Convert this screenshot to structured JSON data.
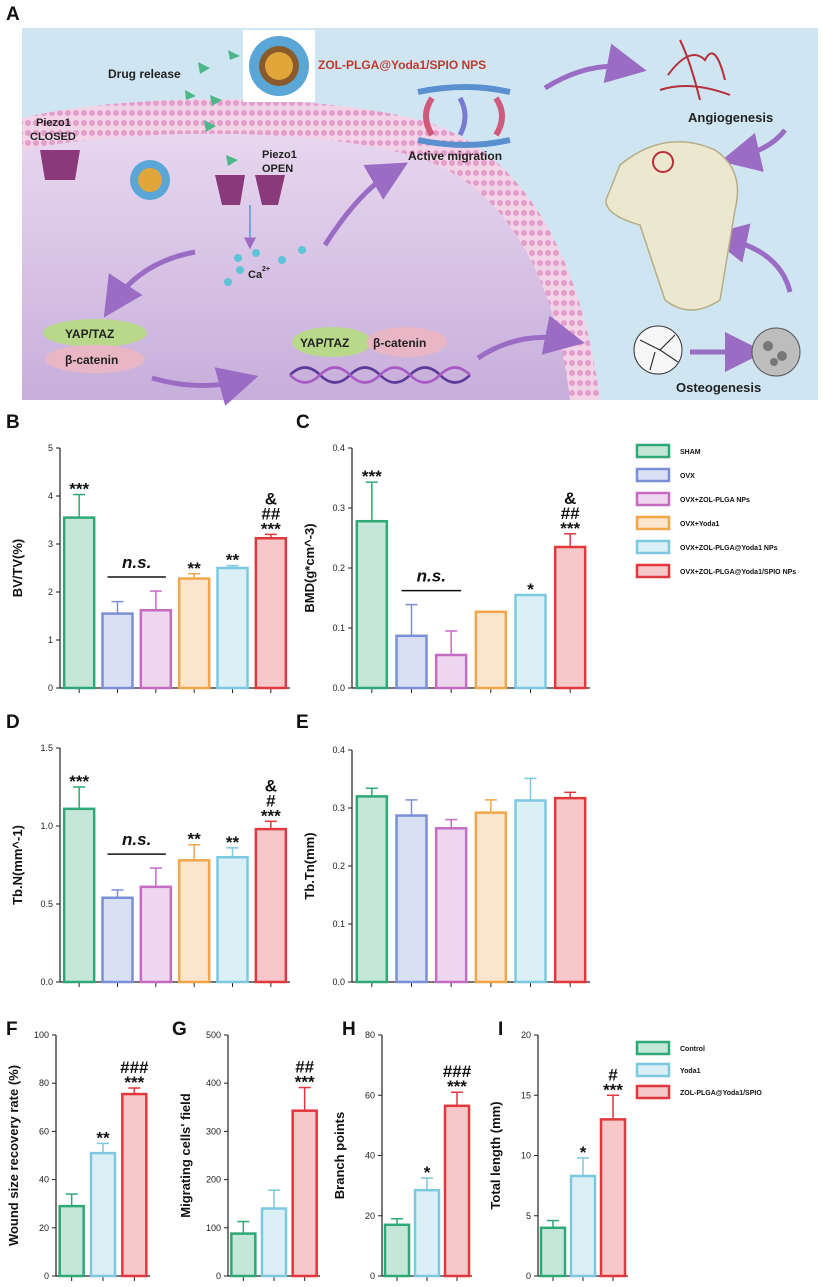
{
  "diagram": {
    "letter": "A",
    "drug_release": "Drug release",
    "np_title": "ZOL-PLGA@Yoda1/SPIO NPS",
    "piezo_closed_1": "Piezo1",
    "piezo_closed_2": "CLOSED",
    "piezo_open_1": "Piezo1",
    "piezo_open_2": "OPEN",
    "active_migration": "Active migration",
    "angiogenesis": "Angiogenesis",
    "osteogenesis": "Osteogenesis",
    "calcium": "Ca",
    "calcium_sup": "2+",
    "yap1": "YAP/TAZ",
    "bcat1": "β-catenin",
    "yap2": "YAP/TAZ",
    "bcat2": "β-catenin",
    "colors": {
      "background": "#cfe6f2",
      "membrane": "#e8b5d6",
      "cell": "#d6c2e4",
      "arrow": "#9a6cc4",
      "title_red": "#c0392b"
    }
  },
  "legend_top": [
    {
      "label": "SHAM",
      "color": "#2ea876"
    },
    {
      "label": "OVX",
      "color": "#7b8fd6"
    },
    {
      "label": "OVX+ZOL-PLGA NPs",
      "color": "#c46cc4"
    },
    {
      "label": "OVX+Yoda1",
      "color": "#f2a64a"
    },
    {
      "label": "OVX+ZOL-PLGA@Yoda1 NPs",
      "color": "#7cc8e0"
    },
    {
      "label": "OVX+ZOL-PLGA@Yoda1/SPIO NPs",
      "color": "#e0383d"
    }
  ],
  "legend_bottom": [
    {
      "label": "Control",
      "color": "#2ea876"
    },
    {
      "label": "Yoda1",
      "color": "#7cc8e0"
    },
    {
      "label": "ZOL-PLGA@Yoda1/SPIO",
      "color": "#e0383d"
    }
  ],
  "chart_data": [
    {
      "panel": "B",
      "type": "bar",
      "ylabel": "BV/TV(%)",
      "ylim": [
        0,
        5
      ],
      "yticks": [
        "0",
        "1",
        "2",
        "3",
        "4",
        "5"
      ],
      "categories": [
        "SHAM",
        "OVX",
        "OVX+ZOL-PLGA NPs",
        "OVX+Yoda1",
        "OVX+ZOL-PLGA@Yoda1 NPs",
        "OVX+ZOL-PLGA@Yoda1/SPIO NPs"
      ],
      "values": [
        3.55,
        1.55,
        1.62,
        2.28,
        2.5,
        3.12
      ],
      "errors": [
        0.48,
        0.25,
        0.4,
        0.1,
        0.05,
        0.08
      ],
      "annotations": [
        "***",
        "",
        "",
        "**",
        "**",
        "***\n##\n&"
      ],
      "ns_label": "n.s."
    },
    {
      "panel": "C",
      "type": "bar",
      "ylabel": "BMD(g*cm^-3)",
      "ylim": [
        0,
        0.4
      ],
      "yticks": [
        "0.0",
        "0.1",
        "0.2",
        "0.3",
        "0.4"
      ],
      "categories": [
        "SHAM",
        "OVX",
        "OVX+ZOL-PLGA NPs",
        "OVX+Yoda1",
        "OVX+ZOL-PLGA@Yoda1 NPs",
        "OVX+ZOL-PLGA@Yoda1/SPIO NPs"
      ],
      "values": [
        0.278,
        0.087,
        0.055,
        0.127,
        0.155,
        0.235
      ],
      "errors": [
        0.065,
        0.052,
        0.04,
        0.0,
        0.0,
        0.022
      ],
      "annotations": [
        "***",
        "",
        "",
        "",
        "*",
        "***\n##\n&"
      ],
      "ns_label": "n.s."
    },
    {
      "panel": "D",
      "type": "bar",
      "ylabel": "Tb.N(mm^-1)",
      "ylim": [
        0,
        1.5
      ],
      "yticks": [
        "0.0",
        "0.5",
        "1.0",
        "1.5"
      ],
      "categories": [
        "SHAM",
        "OVX",
        "OVX+ZOL-PLGA NPs",
        "OVX+Yoda1",
        "OVX+ZOL-PLGA@Yoda1 NPs",
        "OVX+ZOL-PLGA@Yoda1/SPIO NPs"
      ],
      "values": [
        1.11,
        0.54,
        0.61,
        0.78,
        0.8,
        0.98
      ],
      "errors": [
        0.14,
        0.05,
        0.12,
        0.1,
        0.06,
        0.05
      ],
      "annotations": [
        "***",
        "",
        "",
        "**",
        "**",
        "***\n#\n&"
      ],
      "ns_label": "n.s."
    },
    {
      "panel": "E",
      "type": "bar",
      "ylabel": "Tb.Tn(mm)",
      "ylim": [
        0,
        0.4
      ],
      "yticks": [
        "0.0",
        "0.1",
        "0.2",
        "0.3",
        "0.4"
      ],
      "categories": [
        "SHAM",
        "OVX",
        "OVX+ZOL-PLGA NPs",
        "OVX+Yoda1",
        "OVX+ZOL-PLGA@Yoda1 NPs",
        "OVX+ZOL-PLGA@Yoda1/SPIO NPs"
      ],
      "values": [
        0.32,
        0.287,
        0.265,
        0.292,
        0.313,
        0.317
      ],
      "errors": [
        0.014,
        0.027,
        0.015,
        0.022,
        0.038,
        0.01
      ],
      "annotations": [
        "",
        "",
        "",
        "",
        "",
        ""
      ],
      "ns_label": ""
    },
    {
      "panel": "F",
      "type": "bar",
      "ylabel": "Wound size recovery rate (%)",
      "ylim": [
        0,
        100
      ],
      "yticks": [
        "0",
        "20",
        "40",
        "60",
        "80",
        "100"
      ],
      "categories": [
        "Control",
        "Yoda1",
        "ZOL-PLGA@Yoda1/SPIO"
      ],
      "values": [
        29,
        51,
        75.5
      ],
      "errors": [
        5,
        4,
        2.5
      ],
      "annotations": [
        "",
        "**",
        "***\n###"
      ]
    },
    {
      "panel": "G",
      "type": "bar",
      "ylabel": "Migrating cells' field",
      "ylim": [
        0,
        500
      ],
      "yticks": [
        "0",
        "100",
        "200",
        "300",
        "400",
        "500"
      ],
      "categories": [
        "Control",
        "Yoda1",
        "ZOL-PLGA@Yoda1/SPIO"
      ],
      "values": [
        88,
        140,
        343
      ],
      "errors": [
        25,
        38,
        48
      ],
      "annotations": [
        "",
        "",
        "***\n##"
      ]
    },
    {
      "panel": "H",
      "type": "bar",
      "ylabel": "Branch points",
      "ylim": [
        0,
        80
      ],
      "yticks": [
        "0",
        "20",
        "40",
        "60",
        "80"
      ],
      "categories": [
        "Control",
        "Yoda1",
        "ZOL-PLGA@Yoda1/SPIO"
      ],
      "values": [
        17,
        28.5,
        56.5
      ],
      "errors": [
        2,
        4,
        4.5
      ],
      "annotations": [
        "",
        "*",
        "***\n###"
      ]
    },
    {
      "panel": "I",
      "type": "bar",
      "ylabel": "Total length (mm)",
      "ylim": [
        0,
        20
      ],
      "yticks": [
        "0",
        "5",
        "10",
        "15",
        "20"
      ],
      "categories": [
        "Control",
        "Yoda1",
        "ZOL-PLGA@Yoda1/SPIO"
      ],
      "values": [
        4,
        8.3,
        13
      ],
      "errors": [
        0.6,
        1.5,
        2
      ],
      "annotations": [
        "",
        "*",
        "***\n#"
      ]
    }
  ]
}
